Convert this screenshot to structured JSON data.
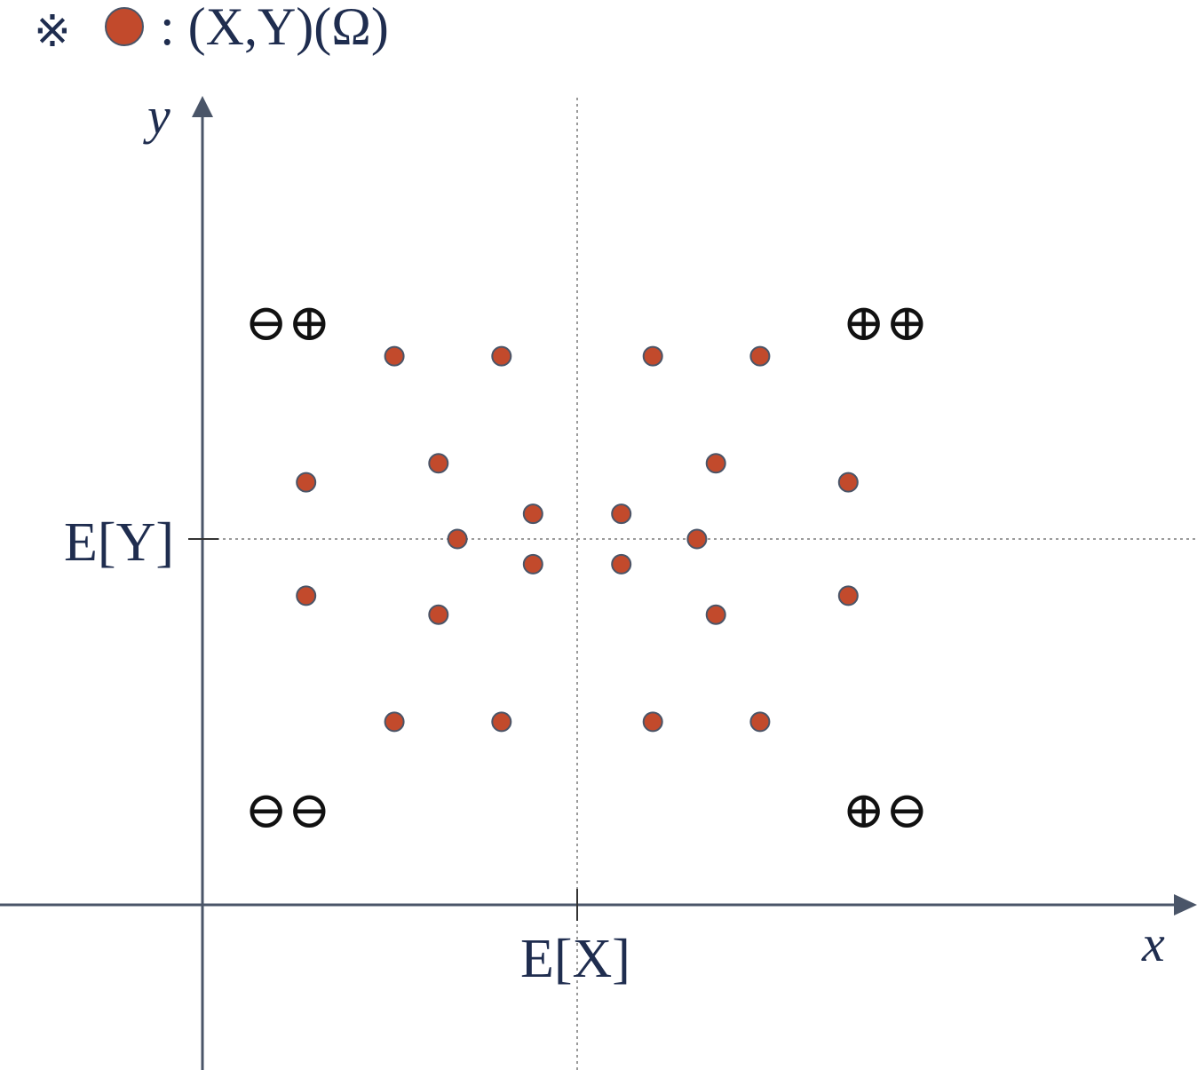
{
  "legend": {
    "note_symbol": "※",
    "dot_description": ": (X,Y)(Ω)"
  },
  "colors": {
    "axis": "#4a5568",
    "text": "#1f2d4f",
    "point_fill": "#c24a2c",
    "point_stroke": "#4a5568",
    "guide": "#9a9a9a",
    "sign": "#111111"
  },
  "axes": {
    "x_label": "x",
    "y_label": "y",
    "mean_x_label": "E[X]",
    "mean_y_label": "E[Y]"
  },
  "quadrants": {
    "upper_left": "⊖⊕",
    "upper_right": "⊕⊕",
    "lower_left": "⊖⊖",
    "lower_right": "⊕⊖"
  },
  "chart_data": {
    "type": "scatter",
    "title": "",
    "xlabel": "x",
    "ylabel": "y",
    "points": [
      [
        -2.9,
        2.9
      ],
      [
        -1.2,
        2.9
      ],
      [
        1.2,
        2.9
      ],
      [
        2.9,
        2.9
      ],
      [
        -4.3,
        0.9
      ],
      [
        -2.2,
        1.2
      ],
      [
        2.2,
        1.2
      ],
      [
        4.3,
        0.9
      ],
      [
        -0.7,
        0.4
      ],
      [
        0.7,
        0.4
      ],
      [
        -1.9,
        0.0
      ],
      [
        1.9,
        0.0
      ],
      [
        -0.7,
        -0.4
      ],
      [
        0.7,
        -0.4
      ],
      [
        -4.3,
        -0.9
      ],
      [
        -2.2,
        -1.2
      ],
      [
        2.2,
        -1.2
      ],
      [
        4.3,
        -0.9
      ],
      [
        -2.9,
        -2.9
      ],
      [
        -1.2,
        -2.9
      ],
      [
        1.2,
        -2.9
      ],
      [
        2.9,
        -2.9
      ]
    ]
  }
}
